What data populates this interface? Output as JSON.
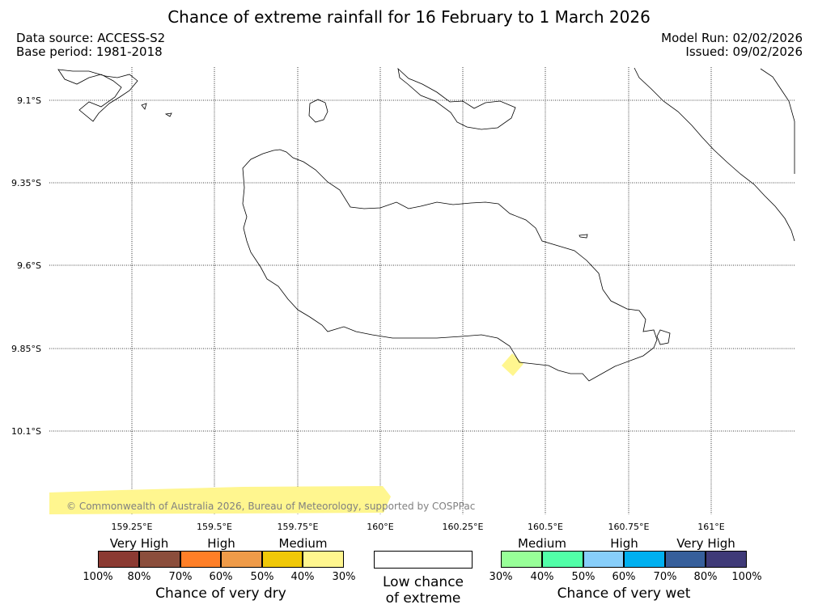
{
  "title": "Chance of extreme rainfall for 16 February to 1 March 2026",
  "meta": {
    "data_source": "Data source: ACCESS-S2",
    "base_period": "Base period: 1981-2018",
    "model_run": "Model Run: 02/02/2026",
    "issued": "Issued: 09/02/2026"
  },
  "map": {
    "latitudes": [
      "9.1°S",
      "9.35°S",
      "9.6°S",
      "9.85°S",
      "10.1°S"
    ],
    "longitudes": [
      "159.25°E",
      "159.5°E",
      "159.75°E",
      "160°E",
      "160.25°E",
      "160.5°E",
      "160.75°E",
      "161°E"
    ],
    "copyright": "© Commonwealth of Australia 2026, Bureau of Meteorology, supported by COSPPac",
    "highlight_color": "#fff68f"
  },
  "legend": {
    "dry": {
      "headings": [
        "Very High",
        "High",
        "Medium"
      ],
      "colors": [
        "#8b3a32",
        "#8b4e3c",
        "#ff7f27",
        "#ef9b49",
        "#f0c808",
        "#fff68f"
      ],
      "percents": [
        "100%",
        "80%",
        "70%",
        "60%",
        "50%",
        "40%",
        "30%"
      ],
      "title": "Chance of very dry"
    },
    "neutral": {
      "line1": "Low chance",
      "line2": "of extreme"
    },
    "wet": {
      "headings": [
        "Medium",
        "High",
        "Very High"
      ],
      "colors": [
        "#98ff98",
        "#52ffa8",
        "#87cefa",
        "#00b0f0",
        "#365f9b",
        "#3f3a78"
      ],
      "percents": [
        "30%",
        "40%",
        "50%",
        "60%",
        "70%",
        "80%",
        "100%"
      ],
      "title": "Chance of very wet"
    }
  }
}
